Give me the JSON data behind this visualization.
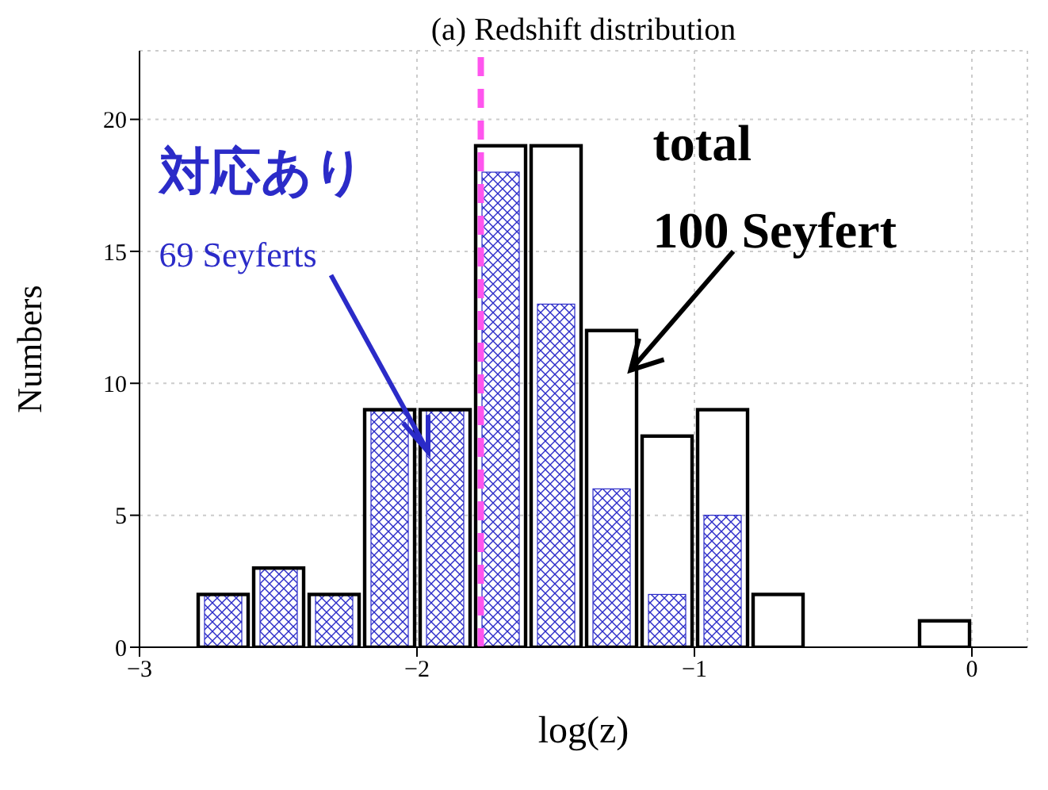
{
  "chart_data": {
    "type": "histogram",
    "title": "(a) Redshift distribution",
    "xlabel": "log(z)",
    "ylabel": "Numbers",
    "bins": [
      -3,
      -2.8,
      -2.6,
      -2.4,
      -2.2,
      -2.0,
      -1.8,
      -1.6,
      -1.4,
      -1.2,
      -1.0,
      -0.8,
      -0.6,
      -0.4,
      -0.2,
      0,
      0.2
    ],
    "series": [
      {
        "name": "69 Seyferts",
        "color": "#2b2bc8",
        "values": [
          0,
          2,
          3,
          2,
          9,
          9,
          18,
          13,
          6,
          2,
          5,
          0,
          0,
          0,
          0,
          0
        ]
      },
      {
        "name": "100 Seyfert",
        "color": "#000000",
        "values": [
          0,
          2,
          3,
          2,
          9,
          9,
          19,
          19,
          12,
          8,
          9,
          2,
          0,
          0,
          1,
          0
        ]
      }
    ],
    "xlim": [
      -3,
      0.2
    ],
    "xticks": [
      -3,
      -2,
      -1,
      0
    ],
    "ylim": [
      0,
      22.6
    ],
    "yticks": [
      0,
      5,
      10,
      15,
      20
    ],
    "grid": true,
    "ref_lines": [
      {
        "axis": "x",
        "value": -1.77,
        "color": "#ff55ee",
        "line_style": "dashed"
      }
    ],
    "annotations": [
      "対応あり",
      "total"
    ]
  }
}
